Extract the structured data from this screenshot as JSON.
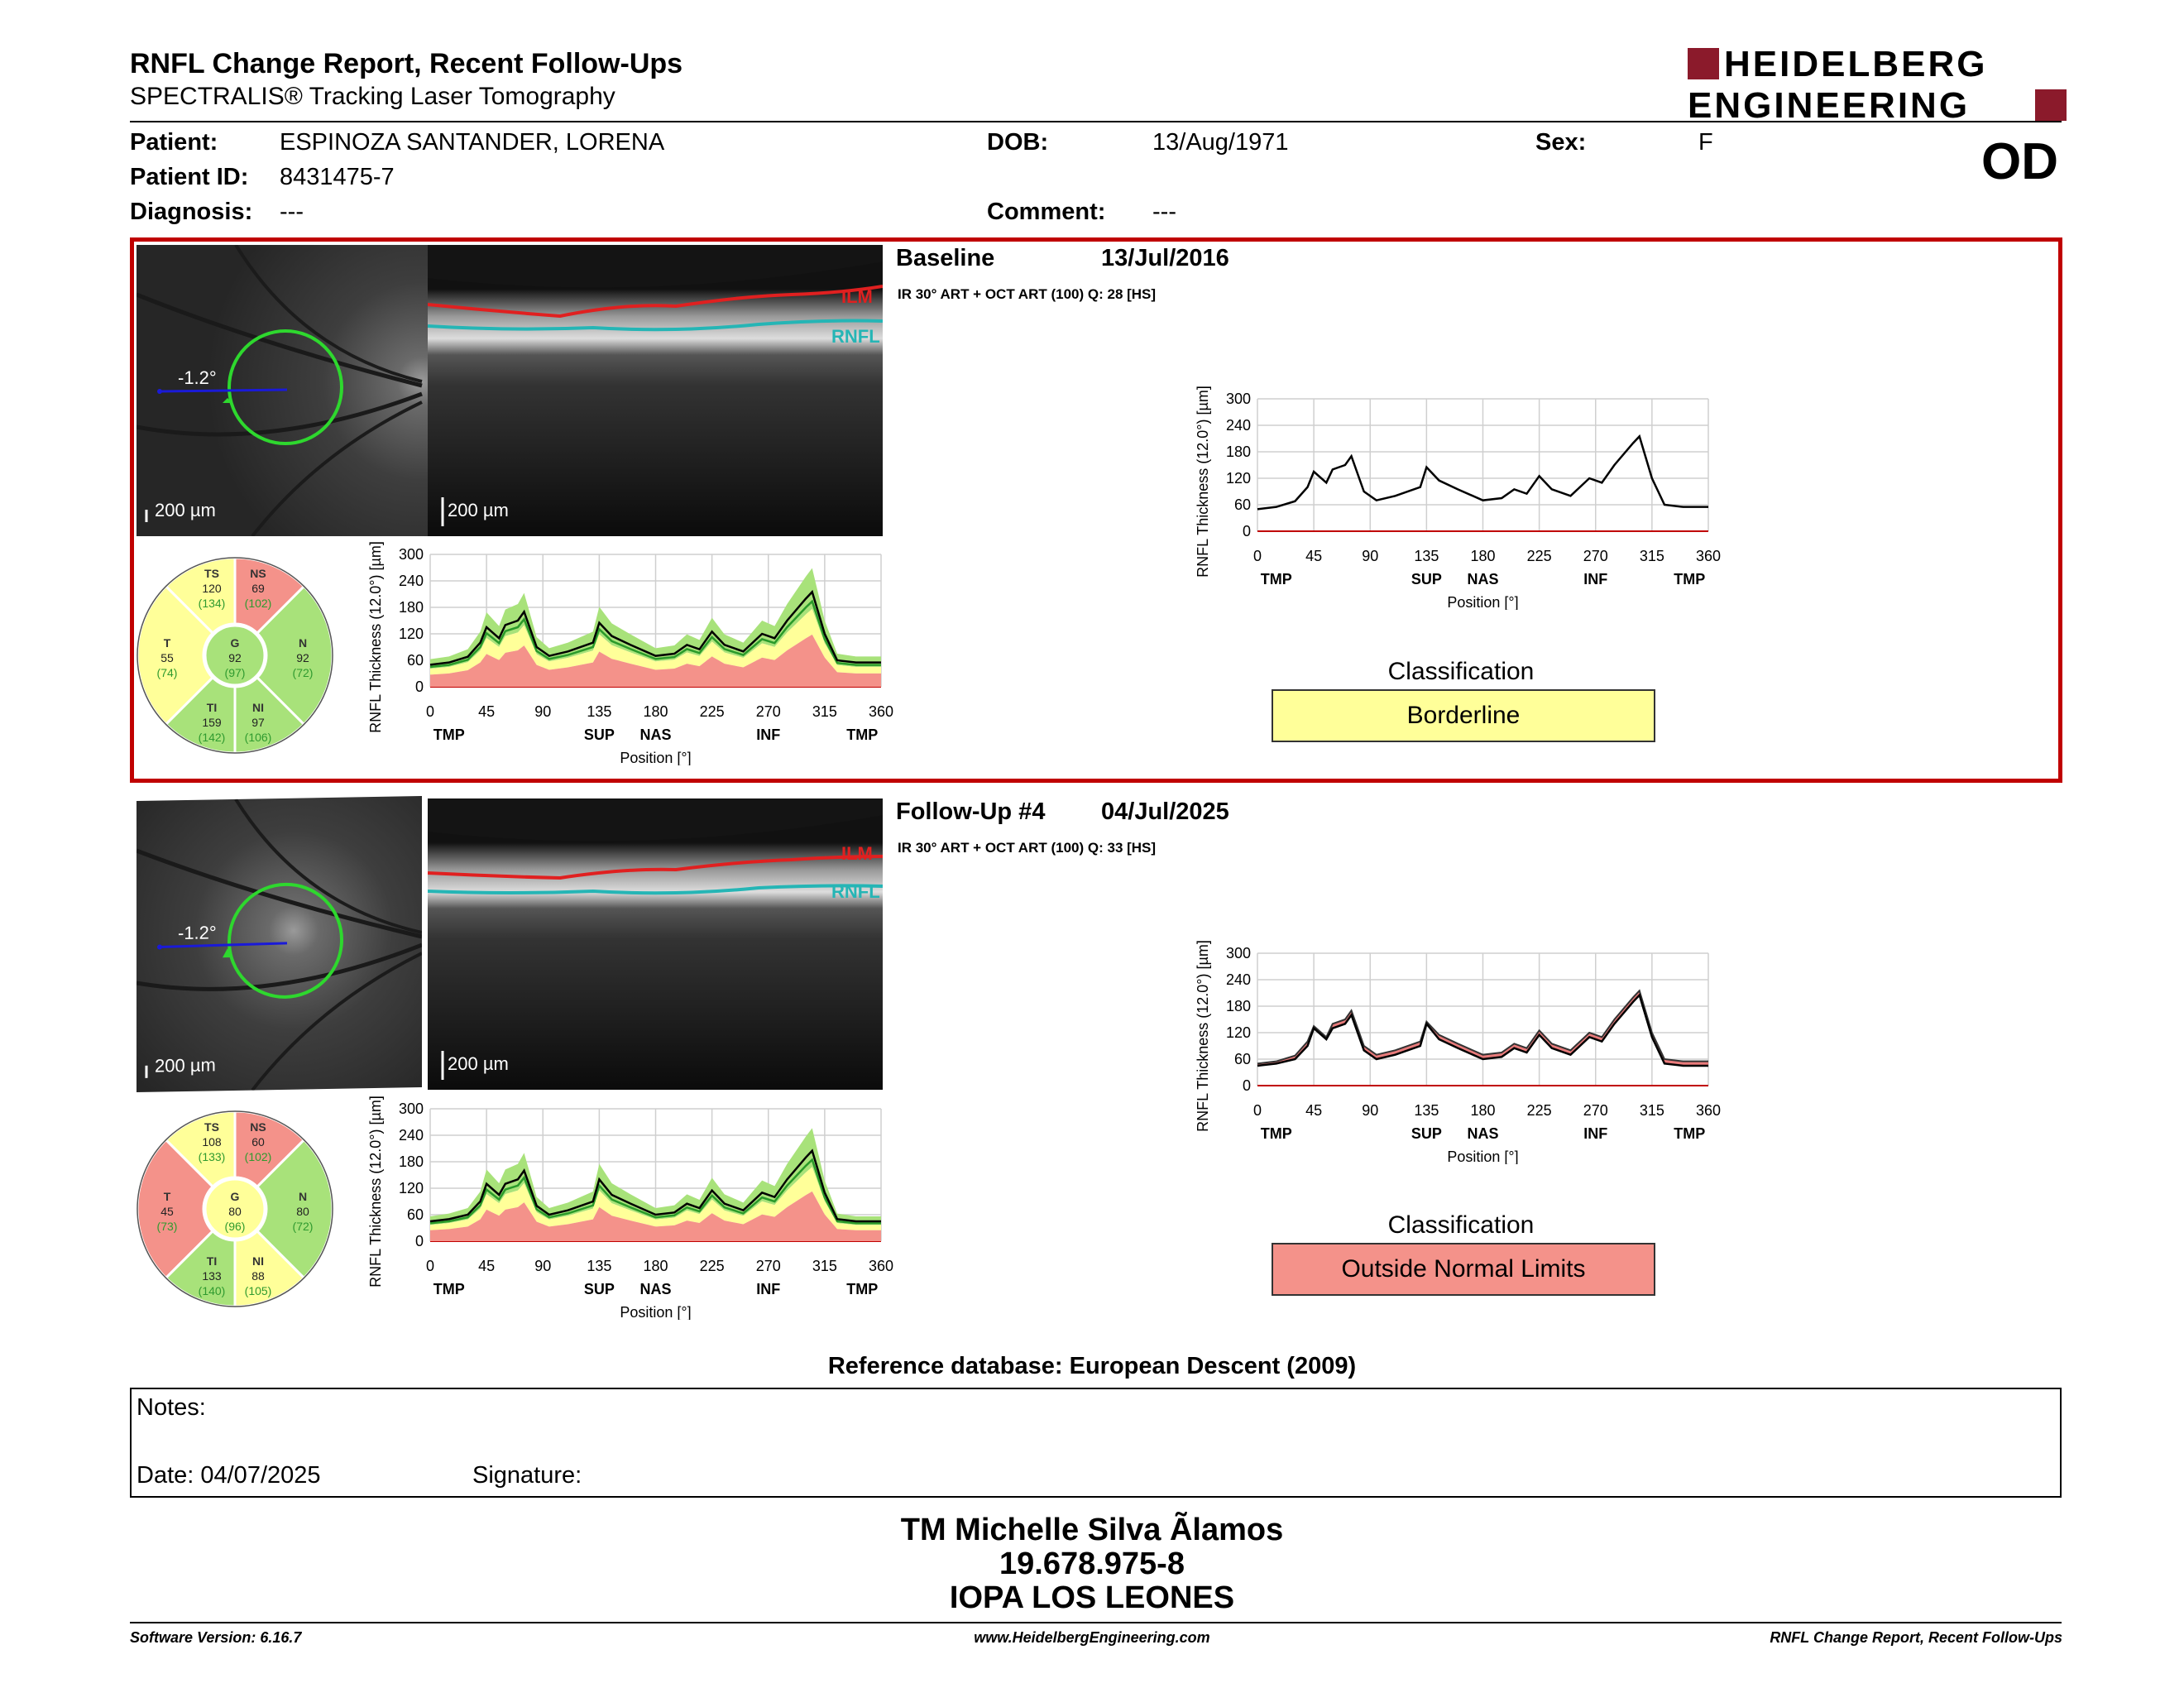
{
  "header": {
    "title": "RNFL Change Report, Recent Follow-Ups",
    "subtitle": "SPECTRALIS® Tracking Laser Tomography",
    "logo_line1": "HEIDELBERG",
    "logo_line2": "ENGINEERING",
    "eye": "OD"
  },
  "patient": {
    "name_label": "Patient:",
    "name": "ESPINOZA SANTANDER, LORENA",
    "id_label": "Patient ID:",
    "id": "8431475-7",
    "diagnosis_label": "Diagnosis:",
    "diagnosis": "---",
    "dob_label": "DOB:",
    "dob": "13/Aug/1971",
    "comment_label": "Comment:",
    "comment": "---",
    "sex_label": "Sex:",
    "sex": "F"
  },
  "baseline": {
    "title": "Baseline",
    "date": "13/Jul/2016",
    "meta": "IR 30° ART + OCT ART (100) Q: 28 [HS]",
    "angle": "-1.2°",
    "scale_fundus": "200 µm",
    "scale_oct": "200 µm",
    "ilm": "ILM",
    "rnfl": "RNFL",
    "sectors": {
      "TS": {
        "label": "TS",
        "value": "120",
        "ref": "(134)"
      },
      "NS": {
        "label": "NS",
        "value": "69",
        "ref": "(102)"
      },
      "T": {
        "label": "T",
        "value": "55",
        "ref": "(74)"
      },
      "G": {
        "label": "G",
        "value": "92",
        "ref": "(97)"
      },
      "N": {
        "label": "N",
        "value": "92",
        "ref": "(72)"
      },
      "TI": {
        "label": "TI",
        "value": "159",
        "ref": "(142)"
      },
      "NI": {
        "label": "NI",
        "value": "97",
        "ref": "(106)"
      }
    },
    "classification_title": "Classification",
    "classification": "Borderline",
    "classification_color": "#ffff99"
  },
  "followup": {
    "title": "Follow-Up #4",
    "date": "04/Jul/2025",
    "meta": "IR 30° ART + OCT ART (100) Q: 33 [HS]",
    "angle": "-1.2°",
    "scale_fundus": "200 µm",
    "scale_oct": "200 µm",
    "ilm": "ILM",
    "rnfl": "RNFL",
    "sectors": {
      "TS": {
        "label": "TS",
        "value": "108",
        "ref": "(133)"
      },
      "NS": {
        "label": "NS",
        "value": "60",
        "ref": "(102)"
      },
      "T": {
        "label": "T",
        "value": "45",
        "ref": "(73)"
      },
      "G": {
        "label": "G",
        "value": "80",
        "ref": "(96)"
      },
      "N": {
        "label": "N",
        "value": "80",
        "ref": "(72)"
      },
      "TI": {
        "label": "TI",
        "value": "133",
        "ref": "(140)"
      },
      "NI": {
        "label": "NI",
        "value": "88",
        "ref": "(105)"
      }
    },
    "classification_title": "Classification",
    "classification": "Outside Normal Limits",
    "classification_color": "#f4928a"
  },
  "colors": {
    "normal": "#a8e27a",
    "borderline": "#ffff99",
    "outside": "#f4928a",
    "frame": "#c00000"
  },
  "chart_data": [
    {
      "type": "line",
      "name": "baseline-normative-profile",
      "ylabel": "RNFL Thickness (12.0°) [µm]",
      "xlabel": "Position [°]",
      "xlim": [
        0,
        360
      ],
      "ylim": [
        0,
        300
      ],
      "xticks": [
        "0",
        "45",
        "90",
        "135",
        "180",
        "225",
        "270",
        "315",
        "360"
      ],
      "yticks": [
        "300",
        "240",
        "180",
        "120",
        "60",
        "0"
      ],
      "region_labels": [
        "TMP",
        "SUP",
        "NAS",
        "INF",
        "TMP"
      ],
      "x": [
        0,
        15,
        30,
        40,
        45,
        55,
        60,
        70,
        75,
        85,
        95,
        110,
        130,
        135,
        145,
        160,
        180,
        195,
        205,
        215,
        225,
        235,
        250,
        265,
        275,
        285,
        300,
        305,
        315,
        325,
        340,
        360
      ],
      "values": [
        50,
        55,
        68,
        100,
        135,
        110,
        140,
        150,
        170,
        90,
        70,
        80,
        100,
        145,
        115,
        95,
        70,
        75,
        95,
        85,
        125,
        95,
        80,
        120,
        110,
        150,
        200,
        215,
        120,
        60,
        55,
        55
      ]
    },
    {
      "type": "line",
      "name": "baseline-profile",
      "ylabel": "RNFL Thickness (12.0°) [µm]",
      "xlabel": "Position [°]",
      "xlim": [
        0,
        360
      ],
      "ylim": [
        0,
        300
      ],
      "xticks": [
        "0",
        "45",
        "90",
        "135",
        "180",
        "225",
        "270",
        "315",
        "360"
      ],
      "yticks": [
        "300",
        "240",
        "180",
        "120",
        "60",
        "0"
      ],
      "region_labels": [
        "TMP",
        "SUP",
        "NAS",
        "INF",
        "TMP"
      ],
      "x": [
        0,
        15,
        30,
        40,
        45,
        55,
        60,
        70,
        75,
        85,
        95,
        110,
        130,
        135,
        145,
        160,
        180,
        195,
        205,
        215,
        225,
        235,
        250,
        265,
        275,
        285,
        300,
        305,
        315,
        325,
        340,
        360
      ],
      "values": [
        50,
        55,
        68,
        100,
        135,
        110,
        140,
        150,
        170,
        90,
        70,
        80,
        100,
        145,
        115,
        95,
        70,
        75,
        95,
        85,
        125,
        95,
        80,
        120,
        110,
        150,
        200,
        215,
        120,
        60,
        55,
        55
      ]
    },
    {
      "type": "line",
      "name": "followup-normative-profile",
      "ylabel": "RNFL Thickness (12.0°) [µm]",
      "xlabel": "Position [°]",
      "xlim": [
        0,
        360
      ],
      "ylim": [
        0,
        300
      ],
      "xticks": [
        "0",
        "45",
        "90",
        "135",
        "180",
        "225",
        "270",
        "315",
        "360"
      ],
      "yticks": [
        "300",
        "240",
        "180",
        "120",
        "60",
        "0"
      ],
      "region_labels": [
        "TMP",
        "SUP",
        "NAS",
        "INF",
        "TMP"
      ],
      "x": [
        0,
        15,
        30,
        40,
        45,
        55,
        60,
        70,
        75,
        85,
        95,
        110,
        130,
        135,
        145,
        160,
        180,
        195,
        205,
        215,
        225,
        235,
        250,
        265,
        275,
        285,
        300,
        305,
        315,
        325,
        340,
        360
      ],
      "values": [
        45,
        50,
        60,
        90,
        130,
        105,
        130,
        140,
        160,
        80,
        60,
        70,
        90,
        140,
        105,
        85,
        60,
        65,
        85,
        75,
        115,
        85,
        70,
        110,
        100,
        140,
        190,
        205,
        110,
        50,
        45,
        45
      ]
    },
    {
      "type": "area",
      "name": "followup-change-profile",
      "ylabel": "RNFL Thickness (12.0°) [µm]",
      "xlabel": "Position [°]",
      "xlim": [
        0,
        360
      ],
      "ylim": [
        0,
        300
      ],
      "xticks": [
        "0",
        "45",
        "90",
        "135",
        "180",
        "225",
        "270",
        "315",
        "360"
      ],
      "yticks": [
        "300",
        "240",
        "180",
        "120",
        "60",
        "0"
      ],
      "region_labels": [
        "TMP",
        "SUP",
        "NAS",
        "INF",
        "TMP"
      ],
      "x": [
        0,
        15,
        30,
        40,
        45,
        55,
        60,
        70,
        75,
        85,
        95,
        110,
        130,
        135,
        145,
        160,
        180,
        195,
        205,
        215,
        225,
        235,
        250,
        265,
        275,
        285,
        300,
        305,
        315,
        325,
        340,
        360
      ],
      "series": [
        {
          "values": [
            50,
            55,
            68,
            100,
            135,
            110,
            140,
            150,
            170,
            90,
            70,
            80,
            100,
            145,
            115,
            95,
            70,
            75,
            95,
            85,
            125,
            95,
            80,
            120,
            110,
            150,
            200,
            215,
            120,
            60,
            55,
            55
          ]
        },
        {
          "values": [
            45,
            50,
            60,
            90,
            130,
            105,
            130,
            140,
            160,
            80,
            60,
            70,
            90,
            140,
            105,
            85,
            60,
            65,
            85,
            75,
            115,
            85,
            70,
            110,
            100,
            140,
            190,
            205,
            110,
            50,
            45,
            45
          ]
        }
      ]
    }
  ],
  "reference_db": "Reference database: European Descent (2009)",
  "notes": {
    "label": "Notes:",
    "date_label": "Date: 04/07/2025",
    "signature_label": "Signature:"
  },
  "signature": {
    "name": "TM Michelle Silva Ãlamos",
    "rut": "19.678.975-8",
    "institution": "IOPA LOS LEONES"
  },
  "footer": {
    "software": "Software Version: 6.16.7",
    "url": "www.HeidelbergEngineering.com",
    "report": "RNFL Change Report, Recent Follow-Ups"
  }
}
